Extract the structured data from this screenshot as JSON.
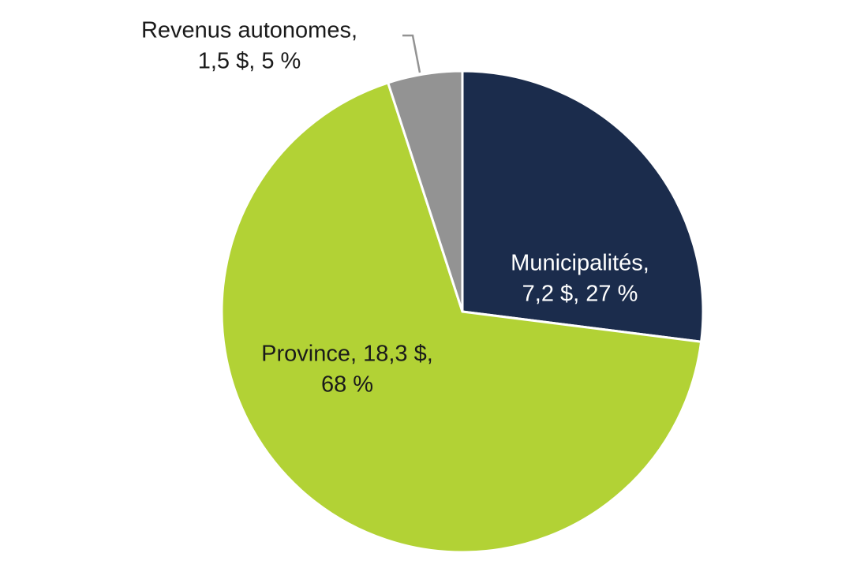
{
  "chart_data": {
    "type": "pie",
    "values": [
      27,
      68,
      5
    ],
    "value_labels": [
      [
        "Municipalités,",
        "7,2 $, 27 %"
      ],
      [
        "Province, 18,3 $,",
        "68 %"
      ],
      [
        "Revenus autonomes,",
        "1,5 $, 5 %"
      ]
    ],
    "colors": [
      "#1b2c4c",
      "#b2d235",
      "#939393"
    ],
    "label_colors": [
      "#ffffff",
      "#1a1a1a",
      "#1a1a1a"
    ]
  }
}
